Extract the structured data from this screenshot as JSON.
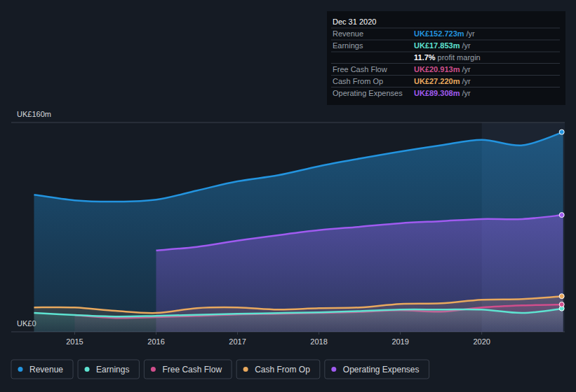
{
  "chart_data": {
    "type": "line",
    "x": [
      2014.5,
      2015,
      2015.5,
      2016,
      2016.5,
      2017,
      2017.5,
      2018,
      2018.5,
      2019,
      2019.5,
      2020,
      2020.5,
      2021
    ],
    "xlim": [
      2014.22,
      2021.02
    ],
    "xticks": [
      2015,
      2016,
      2017,
      2018,
      2019,
      2020
    ],
    "ylim": [
      0,
      160
    ],
    "yticks": [
      {
        "value": 0,
        "label": "UK£0"
      },
      {
        "value": 160,
        "label": "UK£160m"
      }
    ],
    "grid": true,
    "legend": "bottom-left",
    "series": [
      {
        "name": "Revenue",
        "color": "#2394df",
        "values": [
          104.8,
          100.5,
          99.5,
          101,
          108,
          115,
          119.7,
          126.6,
          132.4,
          137.8,
          142.6,
          146.8,
          142.6,
          152.723
        ]
      },
      {
        "name": "Earnings",
        "color": "#5ee3d1",
        "values": [
          14.4,
          12.8,
          11.7,
          12.2,
          13,
          13.8,
          14.3,
          14.9,
          15.8,
          17,
          17,
          17,
          14.4,
          17.853
        ]
      },
      {
        "name": "Free Cash Flow",
        "color": "#d04e8c",
        "values": [
          null,
          12.8,
          10.6,
          11.2,
          12.2,
          13.3,
          13.8,
          14.4,
          15.2,
          16.5,
          15.4,
          18.6,
          20.2,
          20.913
        ]
      },
      {
        "name": "Cash From Op",
        "color": "#e9a95e",
        "values": [
          18.6,
          18.6,
          16,
          14.4,
          18.1,
          18.6,
          17,
          18.1,
          18.6,
          21.3,
          21.8,
          24.5,
          25,
          27.22
        ]
      },
      {
        "name": "Operating Expenses",
        "color": "#a05bf0",
        "values": [
          null,
          null,
          null,
          62.2,
          64.9,
          69.7,
          73.9,
          77.7,
          80.3,
          83,
          84.6,
          86.2,
          86.2,
          89.308
        ]
      }
    ],
    "annotation": {
      "title": "Dec 31 2020",
      "rows": [
        {
          "label": "Revenue",
          "value": "UK£152.723m",
          "suffix": "/yr",
          "color": "#2394df"
        },
        {
          "label": "Earnings",
          "value": "UK£17.853m",
          "suffix": "/yr",
          "color": "#5ee3d1"
        },
        {
          "value": "11.7%",
          "suffix": "profit margin",
          "color": "#ffffff"
        },
        {
          "label": "Free Cash Flow",
          "value": "UK£20.913m",
          "suffix": "/yr",
          "color": "#d04e8c"
        },
        {
          "label": "Cash From Op",
          "value": "UK£27.220m",
          "suffix": "/yr",
          "color": "#e9a95e"
        },
        {
          "label": "Operating Expenses",
          "value": "UK£89.308m",
          "suffix": "/yr",
          "color": "#a05bf0"
        }
      ]
    }
  }
}
